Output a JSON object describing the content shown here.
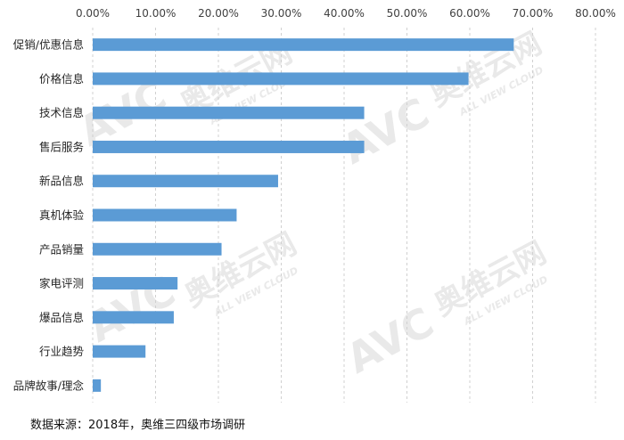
{
  "chart_data": {
    "type": "bar",
    "orientation": "horizontal",
    "categories": [
      "促销/优惠信息",
      "价格信息",
      "技术信息",
      "售后服务",
      "新品信息",
      "真机体验",
      "产品销量",
      "家电评测",
      "爆品信息",
      "行业趋势",
      "品牌故事/理念"
    ],
    "values": [
      67.0,
      59.8,
      43.2,
      43.2,
      29.5,
      22.9,
      20.5,
      13.5,
      12.9,
      8.4,
      1.3
    ],
    "xlim": [
      0,
      80
    ],
    "xticks": [
      0,
      10,
      20,
      30,
      40,
      50,
      60,
      70,
      80
    ],
    "tick_labels": [
      "0.00%",
      "10.00%",
      "20.00%",
      "30.00%",
      "40.00%",
      "50.00%",
      "60.00%",
      "70.00%",
      "80.00%"
    ],
    "x_axis_position": "top",
    "grid": true,
    "legend": false,
    "bar_color": "#5b9bd5"
  },
  "watermark": {
    "brand": "AVC",
    "name_cn": "奥维云网",
    "name_en": "ALL VIEW CLOUD"
  },
  "source": "数据来源：2018年，奥维三四级市场调研"
}
